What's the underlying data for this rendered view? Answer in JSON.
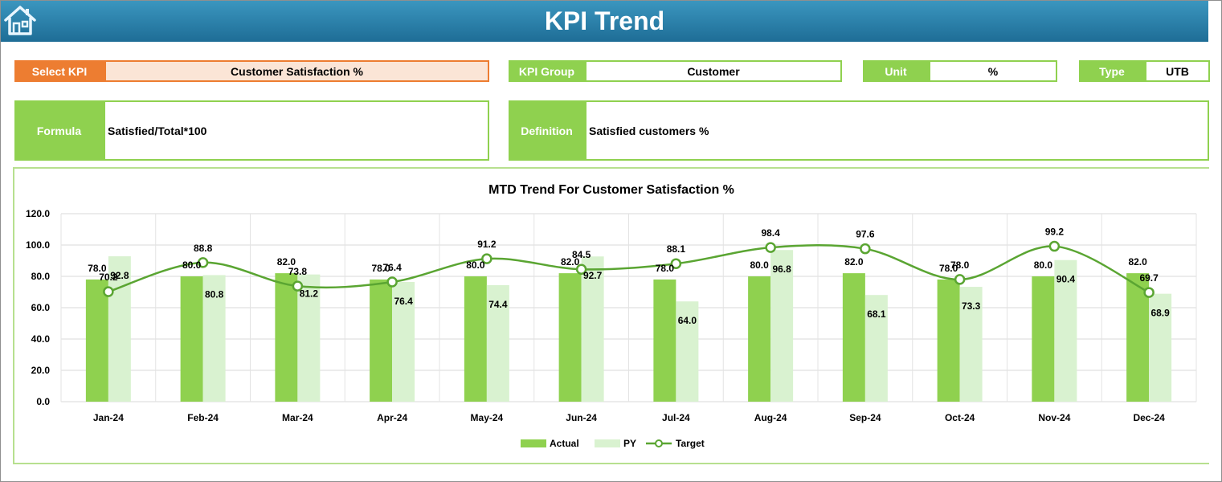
{
  "header": {
    "title": "KPI Trend"
  },
  "fields": {
    "select_kpi_label": "Select KPI",
    "select_kpi_value": "Customer Satisfaction %",
    "kpi_group_label": "KPI Group",
    "kpi_group_value": "Customer",
    "unit_label": "Unit",
    "unit_value": "%",
    "type_label": "Type",
    "type_value": "UTB",
    "formula_label": "Formula",
    "formula_value": "Satisfied/Total*100",
    "definition_label": "Definition",
    "definition_value": "Satisfied customers %"
  },
  "colors": {
    "accent_green": "#8fd14f",
    "py_green": "#d9f2d0",
    "target_line": "#5aa532",
    "select_orange": "#ed7d31"
  },
  "chart_data": {
    "type": "bar",
    "title": "MTD Trend For Customer Satisfaction %",
    "categories": [
      "Jan-24",
      "Feb-24",
      "Mar-24",
      "Apr-24",
      "May-24",
      "Jun-24",
      "Jul-24",
      "Aug-24",
      "Sep-24",
      "Oct-24",
      "Nov-24",
      "Dec-24"
    ],
    "series": [
      {
        "name": "Actual",
        "type": "bar",
        "color": "#8fd14f",
        "values": [
          78.0,
          80.0,
          82.0,
          78.0,
          80.0,
          82.0,
          78.0,
          80.0,
          82.0,
          78.0,
          80.0,
          82.0
        ]
      },
      {
        "name": "PY",
        "type": "bar",
        "color": "#d9f2d0",
        "values": [
          92.8,
          80.8,
          81.2,
          76.4,
          74.4,
          92.7,
          64.0,
          96.8,
          68.1,
          73.3,
          90.4,
          68.9
        ]
      },
      {
        "name": "Target",
        "type": "line",
        "color": "#5aa532",
        "values": [
          70.2,
          88.8,
          73.8,
          76.4,
          91.2,
          84.5,
          88.1,
          98.4,
          97.6,
          78.0,
          99.2,
          69.7
        ]
      }
    ],
    "y_ticks": [
      "0.0",
      "20.0",
      "40.0",
      "60.0",
      "80.0",
      "100.0",
      "120.0"
    ],
    "ylim": [
      0,
      120
    ],
    "grid": true,
    "legend_position": "bottom"
  }
}
